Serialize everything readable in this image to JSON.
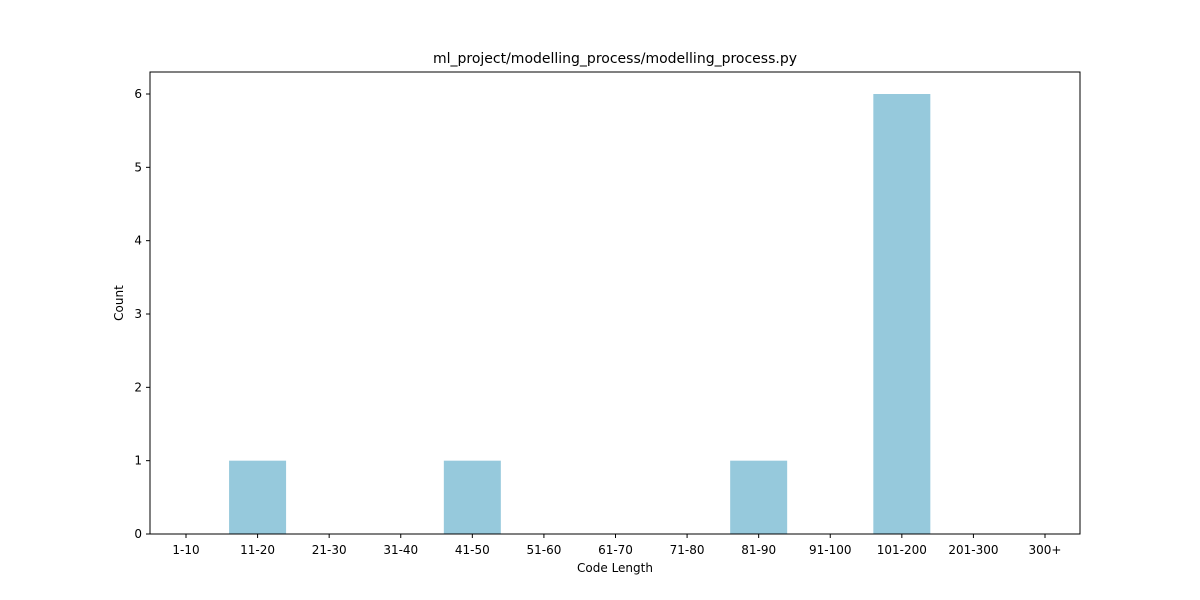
{
  "chart_data": {
    "type": "bar",
    "title": "ml_project/modelling_process/modelling_process.py",
    "xlabel": "Code Length",
    "ylabel": "Count",
    "categories": [
      "1-10",
      "11-20",
      "21-30",
      "31-40",
      "41-50",
      "51-60",
      "61-70",
      "71-80",
      "81-90",
      "91-100",
      "101-200",
      "201-300",
      "300+"
    ],
    "values": [
      0,
      1,
      0,
      0,
      1,
      0,
      0,
      0,
      1,
      0,
      6,
      0,
      0
    ],
    "ylim": [
      0,
      6.3
    ],
    "yticks": [
      0,
      1,
      2,
      3,
      4,
      5,
      6
    ],
    "grid": false,
    "bar_color": "#96c9dc"
  }
}
